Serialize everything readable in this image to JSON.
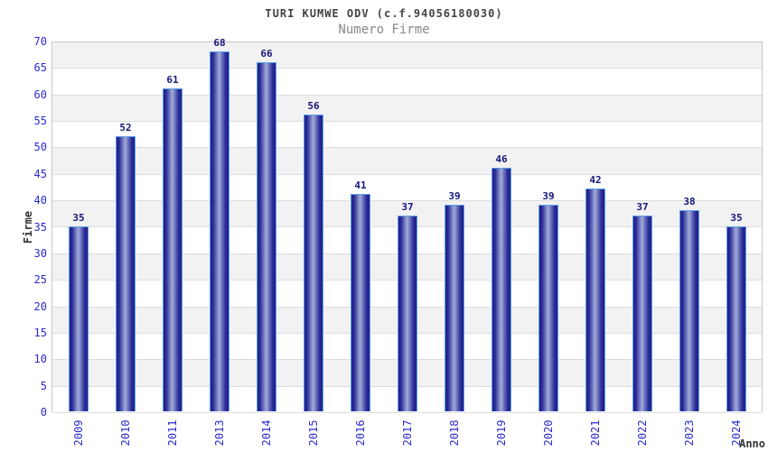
{
  "chart_data": {
    "type": "bar",
    "title": "TURI KUMWE ODV (c.f.94056180030)",
    "subtitle": "Numero Firme",
    "xlabel": "Anno",
    "ylabel": "Firme",
    "categories": [
      "2009",
      "2010",
      "2011",
      "2013",
      "2014",
      "2015",
      "2016",
      "2017",
      "2018",
      "2019",
      "2020",
      "2021",
      "2022",
      "2023",
      "2024"
    ],
    "values": [
      35,
      52,
      61,
      68,
      66,
      56,
      41,
      37,
      39,
      46,
      39,
      42,
      37,
      38,
      35
    ],
    "ylim": [
      0,
      70
    ],
    "ytick_step": 5,
    "grid": "horizontal-bands-alternating",
    "legend": "none",
    "bar_value_labels": true,
    "colors": {
      "tick_label": "#2a2acd",
      "value_label": "#15157d",
      "bar_border": "#5aa0ea",
      "bar_edge": "#20208a",
      "bar_center": "#a2acd9",
      "band_gray": "#f2f2f2",
      "band_white": "#ffffff",
      "gridline": "#dddddd",
      "title": "#444444",
      "subtitle": "#888888",
      "axis_title": "#333333"
    }
  }
}
